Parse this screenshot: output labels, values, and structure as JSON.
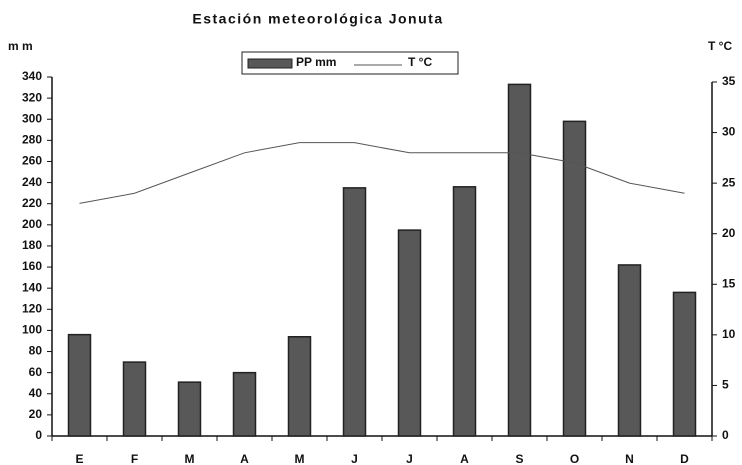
{
  "chart_data": {
    "type": "bar",
    "title": "Estación meteorológica Jonuta",
    "y_label": "m m",
    "y2_label": "T °C",
    "categories": [
      "E",
      "F",
      "M",
      "A",
      "M",
      "J",
      "J",
      "A",
      "S",
      "O",
      "N",
      "D"
    ],
    "series": [
      {
        "name": "PP mm",
        "type": "bar",
        "color": "#585858",
        "values": [
          96,
          70,
          51,
          60,
          94,
          235,
          195,
          236,
          333,
          298,
          162,
          136
        ]
      },
      {
        "name": "T °C",
        "type": "line",
        "axis": "y2",
        "color": "#555555",
        "values": [
          23,
          24,
          26,
          28,
          29,
          29,
          28,
          28,
          28,
          27,
          25,
          24
        ]
      }
    ],
    "ylim": [
      0,
      340
    ],
    "yticks": [
      0,
      20,
      40,
      60,
      80,
      100,
      120,
      140,
      160,
      180,
      200,
      220,
      240,
      260,
      280,
      300,
      320,
      340
    ],
    "y2lim": [
      0,
      35
    ],
    "y2ticks": [
      0,
      5,
      10,
      15,
      20,
      25,
      30,
      35
    ],
    "legend": "top"
  }
}
